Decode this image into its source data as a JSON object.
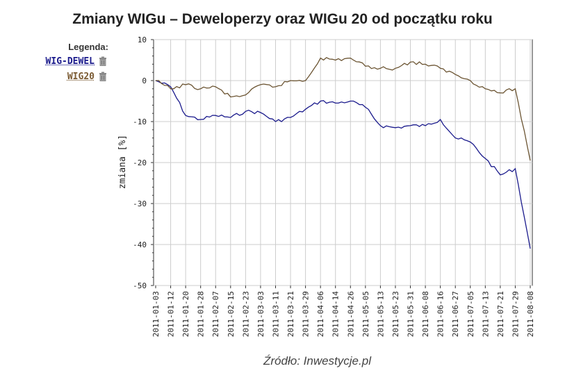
{
  "chart_data": {
    "type": "line",
    "title": "Zmiany WIGu – Deweloperzy oraz WIGu 20 od początku roku",
    "ylabel": "zmiana [%]",
    "xlabel": "",
    "ylim": [
      -50,
      10
    ],
    "yticks": [
      "10",
      "0",
      "-10",
      "-20",
      "-30",
      "-40",
      "-50"
    ],
    "grid": true,
    "legend_title": "Legenda:",
    "legend_position": "left",
    "x_ticks": [
      "2011-01-03",
      "2011-01-12",
      "2011-01-20",
      "2011-01-28",
      "2011-02-07",
      "2011-02-15",
      "2011-02-23",
      "2011-03-03",
      "2011-03-11",
      "2011-03-21",
      "2011-03-29",
      "2011-04-06",
      "2011-04-14",
      "2011-04-26",
      "2011-05-05",
      "2011-05-13",
      "2011-05-23",
      "2011-05-31",
      "2011-06-08",
      "2011-06-16",
      "2011-06-27",
      "2011-07-05",
      "2011-07-13",
      "2011-07-21",
      "2011-07-29",
      "2011-08-08"
    ],
    "series": [
      {
        "name": "WIG-DEWEL",
        "color": "#1a1a8c",
        "values": [
          0,
          -1.5,
          -8.5,
          -9.5,
          -8.5,
          -9,
          -7.5,
          -7.8,
          -10,
          -9,
          -7,
          -5,
          -5.5,
          -5,
          -6.5,
          -11,
          -11.5,
          -11,
          -11,
          -9.5,
          -14,
          -15,
          -19,
          -23,
          -21.5,
          -41
        ]
      },
      {
        "name": "WIG20",
        "color": "#6b5432",
        "values": [
          0,
          -2,
          -1,
          -2,
          -1.5,
          -4,
          -3.5,
          -1,
          -1.5,
          0,
          0,
          5.5,
          5,
          5.5,
          3.5,
          3,
          3,
          4.5,
          4,
          3,
          1.5,
          0,
          -2,
          -3,
          -2,
          -19.5
        ]
      }
    ]
  },
  "source": "Źródło: Inwestycje.pl",
  "legend_icon": "trash-icon"
}
